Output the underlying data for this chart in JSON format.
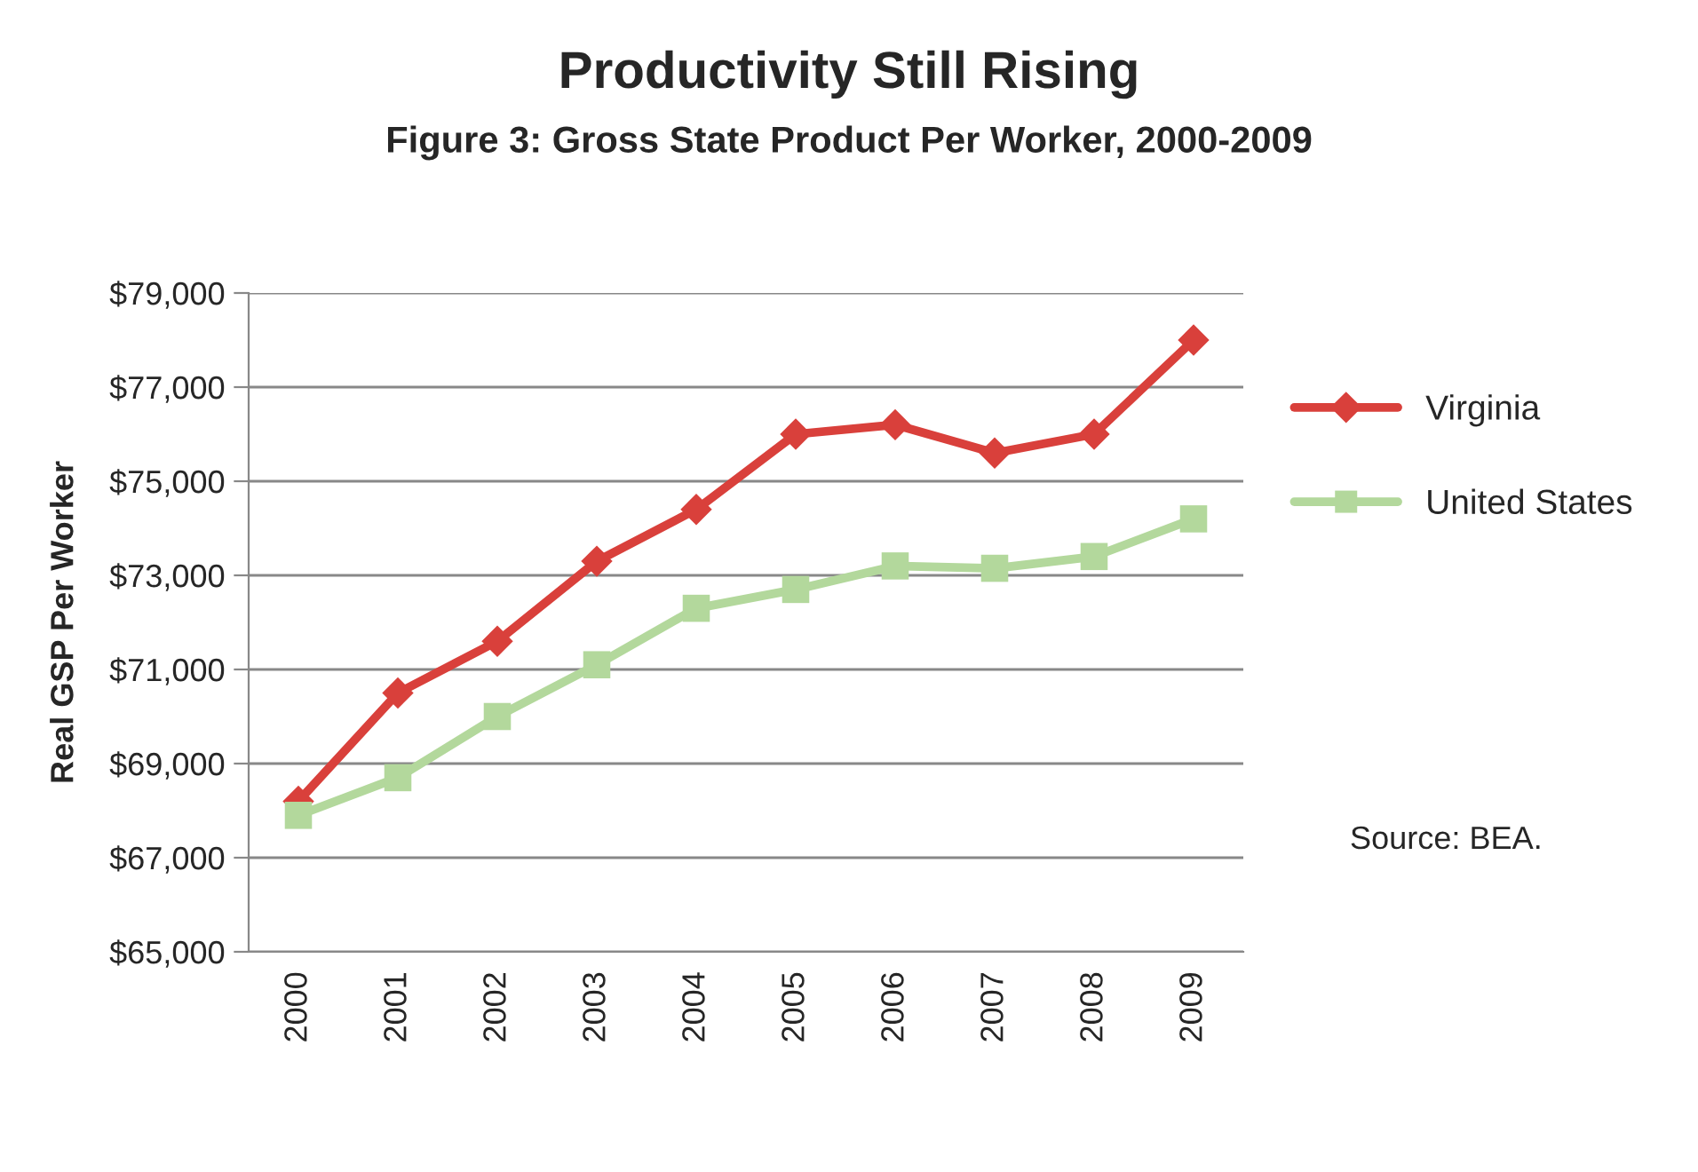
{
  "chart_data": {
    "type": "line",
    "title": "Productivity Still Rising",
    "subtitle": "Figure 3: Gross State Product Per Worker, 2000-2009",
    "ylabel": "Real GSP Per Worker",
    "categories": [
      "2000",
      "2001",
      "2002",
      "2003",
      "2004",
      "2005",
      "2006",
      "2007",
      "2008",
      "2009"
    ],
    "series": [
      {
        "name": "Virginia",
        "color": "#d9403b",
        "marker": "diamond",
        "values": [
          68200,
          70500,
          71600,
          73300,
          74400,
          76000,
          76200,
          75600,
          76000,
          78000
        ]
      },
      {
        "name": "United States",
        "color": "#b3d89c",
        "marker": "square",
        "values": [
          67900,
          68700,
          70000,
          71100,
          72300,
          72700,
          73200,
          73150,
          73400,
          74200
        ]
      }
    ],
    "ylim": [
      65000,
      79000
    ],
    "yticks": [
      {
        "value": 65000,
        "label": "$65,000"
      },
      {
        "value": 67000,
        "label": "$67,000"
      },
      {
        "value": 69000,
        "label": "$69,000"
      },
      {
        "value": 71000,
        "label": "$71,000"
      },
      {
        "value": 73000,
        "label": "$73,000"
      },
      {
        "value": 75000,
        "label": "$75,000"
      },
      {
        "value": 77000,
        "label": "$77,000"
      },
      {
        "value": 79000,
        "label": "$79,000"
      }
    ],
    "grid": "y",
    "legend": "right",
    "line_style": "solid",
    "annotations": [
      "Source: BEA."
    ]
  }
}
